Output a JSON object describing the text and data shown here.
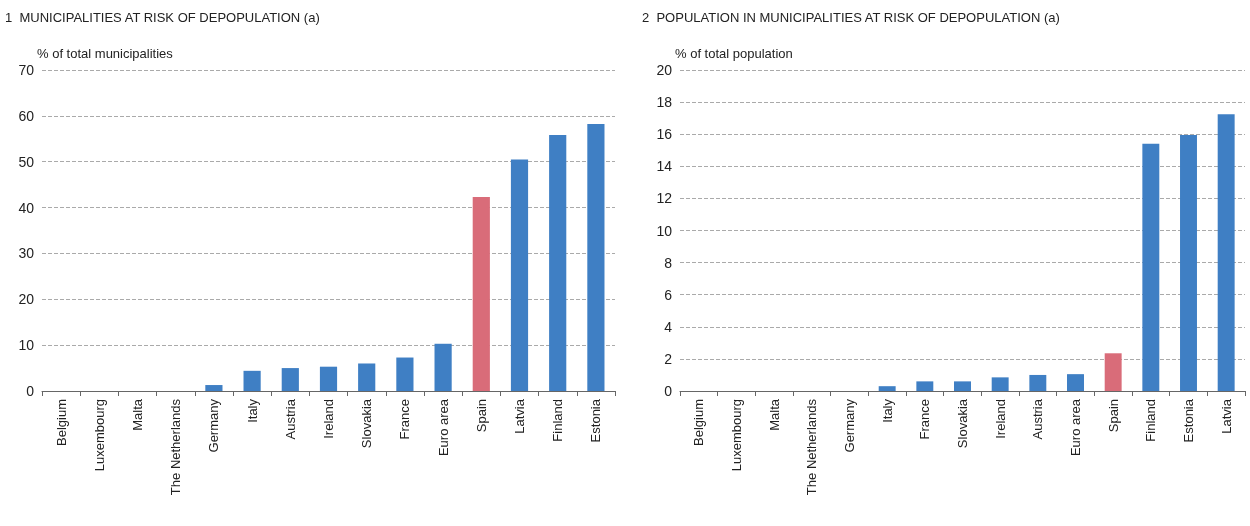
{
  "chart_data": [
    {
      "type": "bar",
      "title": "1  MUNICIPALITIES AT RISK OF DEPOPULATION (a)",
      "ylabel": "% of total municipalities",
      "categories": [
        "Belgium",
        "Luxembourg",
        "Malta",
        "The Netherlands",
        "Germany",
        "Italy",
        "Austria",
        "Ireland",
        "Slovakia",
        "France",
        "Euro area",
        "Spain",
        "Latvia",
        "Finland",
        "Estonia"
      ],
      "values": [
        0,
        0,
        0,
        0,
        1.3,
        4.4,
        5.0,
        5.3,
        6.0,
        7.3,
        10.3,
        42.3,
        50.5,
        55.8,
        58.2
      ],
      "colors": [
        "#3f7fc4",
        "#3f7fc4",
        "#3f7fc4",
        "#3f7fc4",
        "#3f7fc4",
        "#3f7fc4",
        "#3f7fc4",
        "#3f7fc4",
        "#3f7fc4",
        "#3f7fc4",
        "#3f7fc4",
        "#d96c79",
        "#3f7fc4",
        "#3f7fc4",
        "#3f7fc4"
      ],
      "ylim": [
        0,
        70
      ],
      "yticks": [
        0,
        10,
        20,
        30,
        40,
        50,
        60,
        70
      ],
      "grid": "y"
    },
    {
      "type": "bar",
      "title": "2  POPULATION IN MUNICIPALITIES AT RISK OF DEPOPULATION (a)",
      "ylabel": "% of total population",
      "categories": [
        "Belgium",
        "Luxembourg",
        "Malta",
        "The Netherlands",
        "Germany",
        "Italy",
        "France",
        "Slovakia",
        "Ireland",
        "Austria",
        "Euro area",
        "Spain",
        "Finland",
        "Estonia",
        "Latvia"
      ],
      "values": [
        0,
        0,
        0,
        0,
        0,
        0.3,
        0.6,
        0.6,
        0.85,
        1.0,
        1.05,
        2.35,
        15.4,
        15.95,
        17.25
      ],
      "colors": [
        "#3f7fc4",
        "#3f7fc4",
        "#3f7fc4",
        "#3f7fc4",
        "#3f7fc4",
        "#3f7fc4",
        "#3f7fc4",
        "#3f7fc4",
        "#3f7fc4",
        "#3f7fc4",
        "#3f7fc4",
        "#d96c79",
        "#3f7fc4",
        "#3f7fc4",
        "#3f7fc4"
      ],
      "ylim": [
        0,
        20
      ],
      "yticks": [
        0,
        2,
        4,
        6,
        8,
        10,
        12,
        14,
        16,
        18,
        20
      ],
      "grid": "y"
    }
  ]
}
